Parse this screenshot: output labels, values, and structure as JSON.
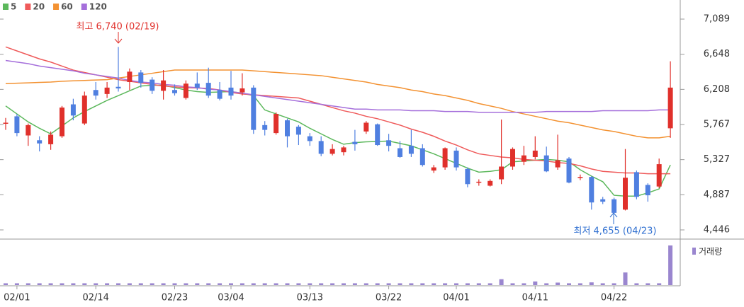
{
  "chart_data": {
    "type": "candlestick",
    "categories": [
      null,
      "02/01",
      null,
      null,
      null,
      null,
      null,
      null,
      "02/14",
      null,
      null,
      null,
      null,
      null,
      null,
      "02/23",
      null,
      null,
      null,
      null,
      "03/04",
      null,
      null,
      null,
      null,
      null,
      null,
      "03/13",
      null,
      null,
      null,
      null,
      null,
      null,
      "03/22",
      null,
      null,
      null,
      null,
      null,
      "04/01",
      null,
      null,
      null,
      null,
      null,
      null,
      "04/11",
      null,
      null,
      null,
      null,
      null,
      null,
      "04/22",
      null,
      null,
      null,
      null,
      null
    ],
    "open": [
      5780,
      5870,
      5630,
      5570,
      5520,
      5620,
      6020,
      5780,
      6200,
      6150,
      6240,
      6300,
      6420,
      6330,
      6190,
      6200,
      6100,
      6280,
      6290,
      6200,
      6230,
      6170,
      6230,
      5760,
      5660,
      5820,
      5740,
      5620,
      5560,
      5400,
      5420,
      5550,
      5680,
      5770,
      5570,
      5470,
      5500,
      5470,
      5190,
      5230,
      5440,
      5210,
      5040,
      5000,
      5080,
      5240,
      5300,
      5360,
      5380,
      5230,
      5340,
      5100,
      5110,
      4830,
      4830,
      4700,
      5170,
      5010,
      4990,
      5720
    ],
    "high": [
      5850,
      5900,
      5780,
      5620,
      5680,
      6000,
      6090,
      6180,
      6300,
      6300,
      6740,
      6470,
      6450,
      6360,
      6450,
      6270,
      6320,
      6420,
      6480,
      6300,
      6440,
      6410,
      6260,
      5810,
      5920,
      5840,
      5760,
      5660,
      5620,
      5520,
      5500,
      5700,
      5810,
      5780,
      5650,
      5560,
      5700,
      5520,
      5260,
      5480,
      5480,
      5230,
      5080,
      5080,
      5830,
      5480,
      5500,
      5620,
      5490,
      5640,
      5360,
      5140,
      5120,
      4860,
      4850,
      5460,
      5190,
      5030,
      5340,
      6560
    ],
    "low": [
      5700,
      5620,
      5500,
      5430,
      5450,
      5600,
      5820,
      5760,
      6080,
      6100,
      6180,
      6200,
      6230,
      6150,
      6080,
      6130,
      6080,
      6200,
      6100,
      6070,
      6080,
      6130,
      5650,
      5630,
      5640,
      5480,
      5510,
      5500,
      5370,
      5380,
      5380,
      5440,
      5650,
      5500,
      5430,
      5350,
      5360,
      5240,
      5160,
      5200,
      5190,
      4980,
      5000,
      4990,
      5020,
      5200,
      5260,
      5330,
      5170,
      5200,
      5030,
      5070,
      4700,
      4770,
      4655,
      4690,
      4830,
      4800,
      4970,
      5600
    ],
    "close": [
      5790,
      5660,
      5760,
      5530,
      5640,
      5980,
      5880,
      6130,
      6130,
      6230,
      6220,
      6430,
      6290,
      6190,
      6320,
      6160,
      6280,
      6230,
      6130,
      6090,
      6130,
      6220,
      5700,
      5700,
      5900,
      5620,
      5640,
      5560,
      5400,
      5460,
      5480,
      5520,
      5790,
      5510,
      5500,
      5360,
      5400,
      5260,
      5230,
      5470,
      5230,
      5020,
      5050,
      5060,
      5240,
      5460,
      5380,
      5440,
      5180,
      5320,
      5040,
      5110,
      4790,
      4800,
      4660,
      5100,
      4860,
      4880,
      5270,
      6230
    ],
    "up_color": "#e0302b",
    "down_color": "#4f7fe0",
    "lines": [
      {
        "name": "5",
        "color": "#5cb85c",
        "values": [
          6000,
          5900,
          5800,
          5720,
          5650,
          5750,
          5850,
          5930,
          6000,
          6070,
          6130,
          6190,
          6250,
          6260,
          6260,
          6230,
          6200,
          6180,
          6170,
          6175,
          6180,
          6160,
          6130,
          5950,
          5900,
          5850,
          5800,
          5720,
          5650,
          5580,
          5520,
          5540,
          5550,
          5555,
          5560,
          5530,
          5500,
          5450,
          5400,
          5340,
          5280,
          5220,
          5170,
          5180,
          5200,
          5300,
          5310,
          5320,
          5330,
          5320,
          5300,
          5200,
          5120,
          5050,
          4880,
          4870,
          4870,
          4910,
          4960,
          5260
        ]
      },
      {
        "name": "20",
        "color": "#ef5a5a",
        "values": [
          6740,
          6690,
          6640,
          6590,
          6550,
          6500,
          6450,
          6420,
          6390,
          6360,
          6330,
          6310,
          6290,
          6270,
          6250,
          6240,
          6230,
          6225,
          6220,
          6200,
          6170,
          6150,
          6140,
          6130,
          6120,
          6110,
          6100,
          6060,
          6020,
          5980,
          5940,
          5910,
          5870,
          5840,
          5800,
          5760,
          5710,
          5670,
          5620,
          5560,
          5510,
          5450,
          5400,
          5380,
          5360,
          5350,
          5330,
          5320,
          5310,
          5290,
          5280,
          5250,
          5210,
          5180,
          5170,
          5160,
          5160,
          5150,
          5150,
          5150
        ]
      },
      {
        "name": "60",
        "color": "#f39232",
        "values": [
          6280,
          6285,
          6290,
          6295,
          6300,
          6310,
          6315,
          6320,
          6325,
          6330,
          6350,
          6370,
          6390,
          6410,
          6430,
          6450,
          6450,
          6450,
          6450,
          6450,
          6450,
          6450,
          6440,
          6430,
          6420,
          6410,
          6400,
          6390,
          6380,
          6360,
          6340,
          6320,
          6300,
          6270,
          6250,
          6230,
          6200,
          6180,
          6150,
          6130,
          6100,
          6070,
          6030,
          6000,
          5970,
          5930,
          5900,
          5870,
          5840,
          5810,
          5790,
          5760,
          5730,
          5700,
          5680,
          5650,
          5620,
          5600,
          5600,
          5620
        ]
      },
      {
        "name": "120",
        "color": "#a56fdb",
        "values": [
          6570,
          6550,
          6530,
          6500,
          6480,
          6460,
          6440,
          6410,
          6390,
          6370,
          6350,
          6320,
          6300,
          6290,
          6270,
          6260,
          6240,
          6230,
          6210,
          6200,
          6180,
          6160,
          6140,
          6120,
          6100,
          6080,
          6060,
          6040,
          6020,
          6000,
          5980,
          5960,
          5960,
          5950,
          5950,
          5950,
          5940,
          5940,
          5940,
          5930,
          5930,
          5930,
          5920,
          5920,
          5920,
          5920,
          5920,
          5920,
          5930,
          5930,
          5930,
          5930,
          5930,
          5940,
          5940,
          5940,
          5940,
          5940,
          5950,
          5950
        ]
      }
    ],
    "volume": {
      "name": "거래량",
      "color": "#9a86cf",
      "values": [
        40,
        40,
        40,
        40,
        40,
        40,
        40,
        40,
        40,
        40,
        40,
        40,
        40,
        40,
        40,
        40,
        40,
        40,
        40,
        40,
        40,
        40,
        40,
        40,
        40,
        40,
        40,
        40,
        40,
        40,
        40,
        40,
        40,
        40,
        40,
        40,
        40,
        40,
        40,
        40,
        40,
        40,
        40,
        40,
        130,
        40,
        40,
        80,
        40,
        55,
        40,
        40,
        60,
        40,
        40,
        280,
        40,
        40,
        40,
        880
      ]
    },
    "ylim": [
      4446,
      7089
    ],
    "yticks": [
      {
        "value": 4446,
        "label": "4,446"
      },
      {
        "value": 4887,
        "label": "4,887"
      },
      {
        "value": 5327,
        "label": "5,327"
      },
      {
        "value": 5767,
        "label": "5,767"
      },
      {
        "value": 6208,
        "label": "6,208"
      },
      {
        "value": 6648,
        "label": "6,648"
      },
      {
        "value": 7089,
        "label": "7,089"
      }
    ],
    "annotations": [
      {
        "text": "최고 6,740 (02/19)",
        "color": "#e0302b"
      },
      {
        "text": "최저 4,655 (04/23)",
        "color": "#2f6fd0"
      }
    ]
  }
}
